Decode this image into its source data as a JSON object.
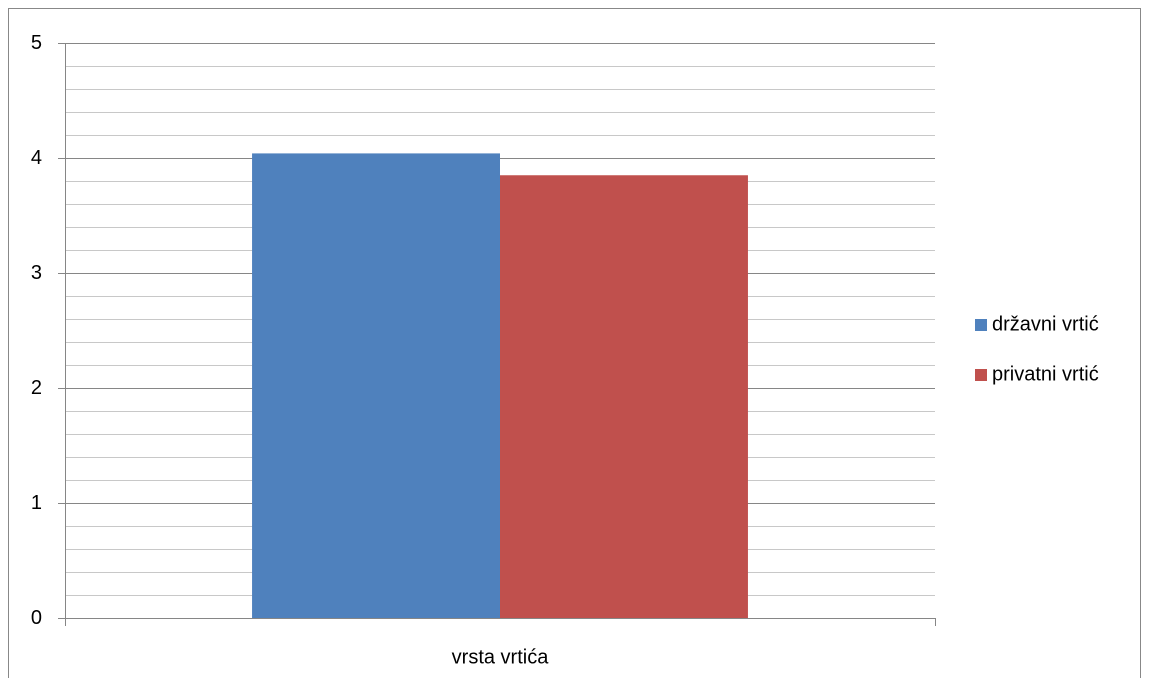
{
  "chart_data": {
    "type": "bar",
    "categories": [
      "vrsta vrtića"
    ],
    "series": [
      {
        "name": "državni vrtić",
        "color": "#4f81bd",
        "values": [
          4.04
        ]
      },
      {
        "name": "privatni vrtić",
        "color": "#c0504d",
        "values": [
          3.85
        ]
      }
    ],
    "ylim": [
      0,
      5
    ],
    "yticks": [
      0,
      1,
      2,
      3,
      4,
      5
    ],
    "minor_yticks": [
      0.2,
      0.4,
      0.6,
      0.8,
      1.2,
      1.4,
      1.6,
      1.8,
      2.2,
      2.4,
      2.6,
      2.8,
      3.2,
      3.4,
      3.6,
      3.8,
      4.2,
      4.4,
      4.6,
      4.8
    ],
    "grid": true,
    "legend": "right"
  }
}
